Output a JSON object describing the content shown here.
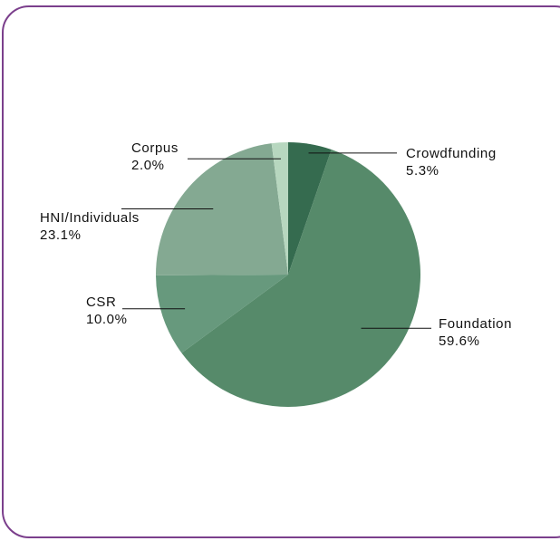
{
  "chart_data": {
    "type": "pie",
    "title": "",
    "slices": [
      {
        "label": "Crowdfunding",
        "value_text": "5.3%",
        "value": 5.3,
        "color": "#356b4f"
      },
      {
        "label": "Foundation",
        "value_text": "59.6%",
        "value": 59.6,
        "color": "#568a6a"
      },
      {
        "label": "CSR",
        "value_text": "10.0%",
        "value": 10.0,
        "color": "#67997d"
      },
      {
        "label": "HNI/Individuals",
        "value_text": "23.1%",
        "value": 23.1,
        "color": "#84a992"
      },
      {
        "label": "Corpus",
        "value_text": "2.0%",
        "value": 2.0,
        "color": "#b7d7bf"
      }
    ]
  },
  "colors": {
    "frame_border": "#7b3f8c",
    "leader_line": "#111111"
  }
}
